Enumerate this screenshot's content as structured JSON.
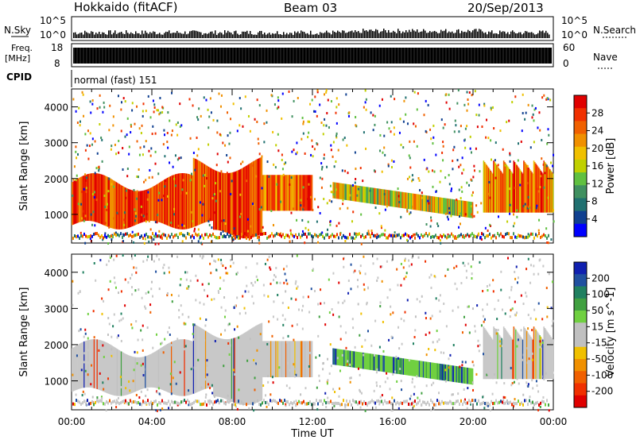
{
  "header": {
    "station": "Hokkaido (fitACF)",
    "beam": "Beam 03",
    "date": "20/Sep/2013"
  },
  "top_panels": {
    "nsky_label": "N.Sky",
    "nsearch_label": "N.Search",
    "noise_ticks": [
      "10^5",
      "10^0"
    ],
    "freq_label_1": "Freq.",
    "freq_label_2": "[MHz]",
    "freq_ticks": [
      "18",
      "8"
    ],
    "nave_label": "Nave",
    "nave_ticks": [
      "60",
      "0"
    ],
    "cpid_label": "CPID",
    "cpid_text": "normal (fast) 151"
  },
  "colorbars": {
    "power": {
      "label": "Power [dB]",
      "ticks": [
        "28",
        "24",
        "20",
        "16",
        "12",
        "8",
        "4"
      ],
      "colors": [
        "#e00000",
        "#f03000",
        "#f06000",
        "#f09000",
        "#f0c000",
        "#c0d000",
        "#60c040",
        "#409060",
        "#207070",
        "#104090",
        "#0000ff"
      ]
    },
    "velocity": {
      "label": "Velocity [m s^-1]",
      "ticks": [
        "200",
        "100",
        "50",
        "15",
        "-15",
        "-50",
        "-100",
        "-200"
      ],
      "colors": [
        "#1020b0",
        "#2050a0",
        "#208060",
        "#40a040",
        "#70d040",
        "#c0c0c0",
        "#c0c0c0",
        "#f0c000",
        "#f09000",
        "#f06000",
        "#f03000",
        "#e00000"
      ]
    }
  },
  "chart_data": [
    {
      "type": "heatmap",
      "title": "Power",
      "xlabel": "",
      "ylabel": "Slant Range [km]",
      "x_ticks": [
        "00:00",
        "04:00",
        "08:00",
        "12:00",
        "16:00",
        "20:00",
        "00:00"
      ],
      "y_ticks": [
        "1000",
        "2000",
        "3000",
        "4000"
      ],
      "ylim": [
        200,
        4500
      ],
      "regions": [
        {
          "x": [
            0,
            24
          ],
          "y": [
            200,
            4500
          ],
          "value": "sparse"
        },
        {
          "x": [
            0,
            9.5
          ],
          "y": [
            600,
            2100
          ],
          "value": "24-32 dB"
        },
        {
          "x": [
            13,
            20
          ],
          "y": [
            900,
            1800
          ],
          "value": "12-24 dB"
        },
        {
          "x": [
            20.5,
            24
          ],
          "y": [
            1000,
            2500
          ],
          "value": "16-24 dB"
        }
      ]
    },
    {
      "type": "heatmap",
      "title": "Velocity",
      "xlabel": "Time UT",
      "ylabel": "Slant Range [km]",
      "x_ticks": [
        "00:00",
        "04:00",
        "08:00",
        "12:00",
        "16:00",
        "20:00",
        "00:00"
      ],
      "y_ticks": [
        "1000",
        "2000",
        "3000",
        "4000"
      ],
      "ylim": [
        200,
        4500
      ],
      "regions": [
        {
          "x": [
            0,
            12
          ],
          "y": [
            600,
            2400
          ],
          "value": "-15 to 15 m/s"
        },
        {
          "x": [
            12,
            20
          ],
          "y": [
            900,
            1900
          ],
          "value": "15 to 100 m/s"
        },
        {
          "x": [
            20.5,
            24
          ],
          "y": [
            1000,
            2500
          ],
          "value": "-15 to 15 m/s"
        }
      ]
    }
  ]
}
